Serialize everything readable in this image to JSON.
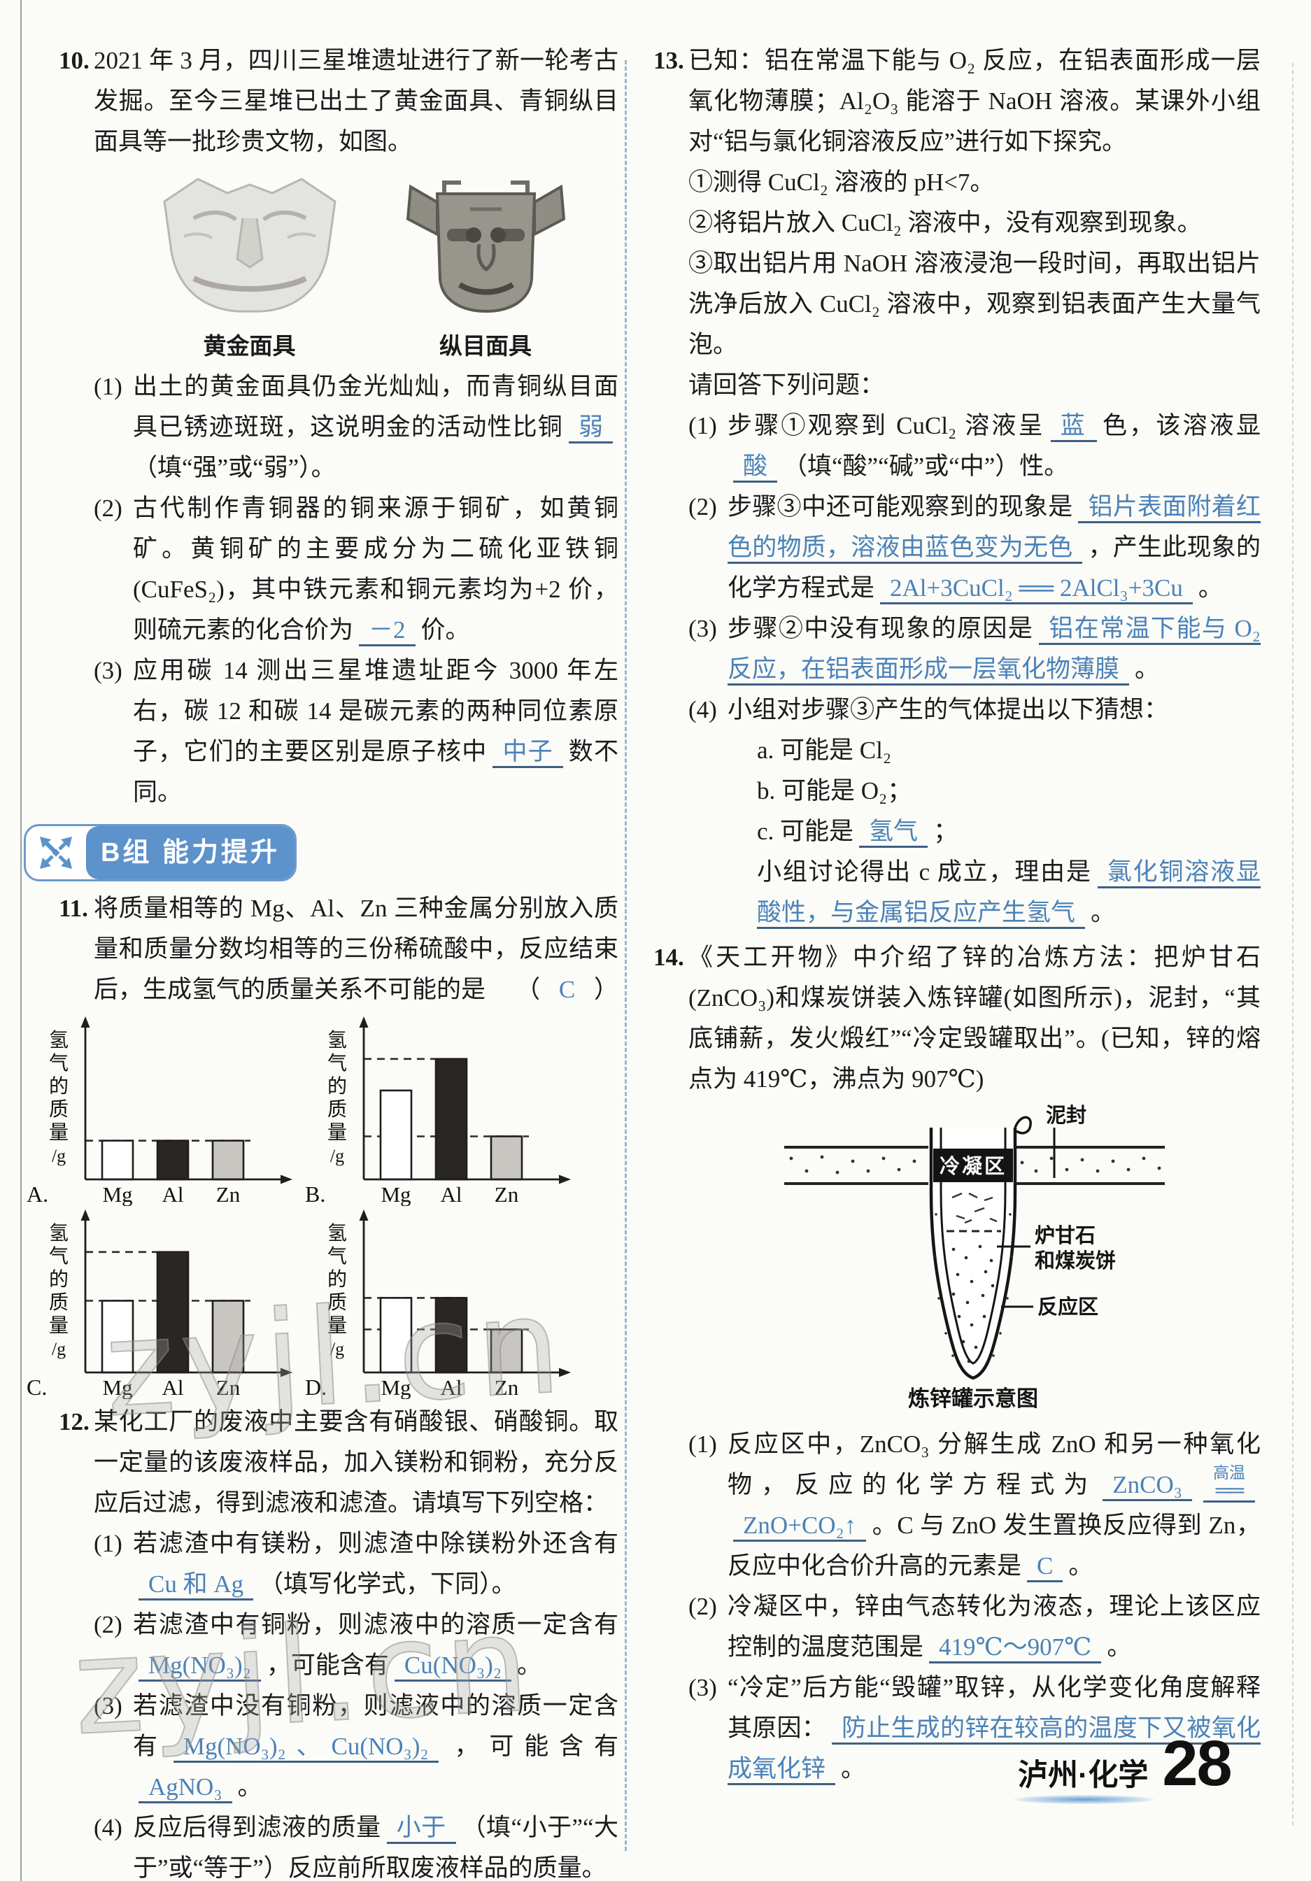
{
  "colors": {
    "answer_blue": "#4b82b8",
    "badge_blue": "#5d92cb",
    "underline": "#3f5f82",
    "text": "#1b1b1b",
    "watermark_gray": "#a8a8a4"
  },
  "watermarks": [
    "zyjl.cn",
    "zyjl.cn"
  ],
  "footer": {
    "region_subject": "泸州·化学",
    "page_number": "28"
  },
  "badge": {
    "label": "B组 能力提升"
  },
  "q10": {
    "no": "10.",
    "intro": "2021 年 3 月，四川三星堆遗址进行了新一轮考古发掘。至今三星堆已出土了黄金面具、青铜纵目面具等一批珍贵文物，如图。",
    "figure": {
      "captions": [
        "黄金面具",
        "纵目面具"
      ]
    },
    "parts": [
      {
        "no": "(1)",
        "segs": [
          {
            "t": "出土的黄金面具仍金光灿灿，而青铜纵目面具已锈迹斑斑，这说明金的活动性比铜"
          },
          {
            "a": "弱"
          },
          {
            "t": "（填“强”或“弱”）。"
          }
        ]
      },
      {
        "no": "(2)",
        "segs": [
          {
            "t": "古代制作青铜器的铜来源于铜矿，如黄铜矿。黄铜矿的主要成分为二硫化亚铁铜(CuFeS₂)，其中铁元素和铜元素均为+2 价，则硫元素的化合价为"
          },
          {
            "a": "－2"
          },
          {
            "t": "价。"
          }
        ]
      },
      {
        "no": "(3)",
        "segs": [
          {
            "t": "应用碳 14 测出三星堆遗址距今 3000 年左右，碳 12 和碳 14 是碳元素的两种同位素原子，它们的主要区别是原子核中"
          },
          {
            "a": "中子"
          },
          {
            "t": "数不同。"
          }
        ]
      }
    ]
  },
  "q11": {
    "no": "11.",
    "stem": "将质量相等的 Mg、Al、Zn 三种金属分别放入质量和质量分数均相等的三份稀硫酸中，反应结束后，生成氢气的质量关系不可能的是",
    "choice_open": "（",
    "answer": "C",
    "choice_close": "）"
  },
  "chart_data": {
    "type": "bar",
    "title": "Q11 选项图：等质量 Mg、Al、Zn 与等量稀硫酸反应生成氢气的质量",
    "ylabel": "氢气的质量/g",
    "ylabel_chars": [
      "氢",
      "气",
      "的",
      "质",
      "量",
      "/g"
    ],
    "categories": [
      "Mg",
      "Al",
      "Zn"
    ],
    "bar_colors": [
      "#ffffff",
      "#2a2624",
      "#c9c6c2"
    ],
    "ylim": [
      0,
      1
    ],
    "charts": [
      {
        "label": "A.",
        "values": [
          0.27,
          0.27,
          0.27
        ],
        "guides": [
          {
            "level": 0.27,
            "to": 2
          }
        ]
      },
      {
        "label": "B.",
        "values": [
          0.62,
          0.84,
          0.3
        ],
        "guides": [
          {
            "level": 0.84,
            "to": 1
          },
          {
            "level": 0.3,
            "to": 2
          }
        ]
      },
      {
        "label": "C.",
        "values": [
          0.5,
          0.84,
          0.5
        ],
        "guides": [
          {
            "level": 0.84,
            "to": 1
          },
          {
            "level": 0.5,
            "to": 2
          }
        ]
      },
      {
        "label": "D.",
        "values": [
          0.52,
          0.52,
          0.3
        ],
        "guides": [
          {
            "level": 0.52,
            "to": 1
          },
          {
            "level": 0.3,
            "to": 2
          }
        ]
      }
    ]
  },
  "q12": {
    "no": "12.",
    "intro": "某化工厂的废液中主要含有硝酸银、硝酸铜。取一定量的该废液样品，加入镁粉和铜粉，充分反应后过滤，得到滤液和滤渣。请填写下列空格：",
    "parts": [
      {
        "no": "(1)",
        "segs": [
          {
            "t": "若滤渣中有镁粉，则滤渣中除镁粉外还含有"
          },
          {
            "a": "Cu 和 Ag"
          },
          {
            "t": "（填写化学式，下同）。"
          }
        ]
      },
      {
        "no": "(2)",
        "segs": [
          {
            "t": "若滤渣中有铜粉，则滤液中的溶质一定含有"
          },
          {
            "a": "Mg(NO₃)₂"
          },
          {
            "t": "，可能含有"
          },
          {
            "a": "Cu(NO₃)₂"
          },
          {
            "t": "。"
          }
        ]
      },
      {
        "no": "(3)",
        "segs": [
          {
            "t": "若滤渣中没有铜粉，则滤液中的溶质一定含有"
          },
          {
            "a": "Mg(NO₃)₂、Cu(NO₃)₂"
          },
          {
            "t": "，可能含有"
          },
          {
            "a": "AgNO₃"
          },
          {
            "t": "。"
          }
        ]
      },
      {
        "no": "(4)",
        "segs": [
          {
            "t": "反应后得到滤液的质量"
          },
          {
            "a": "小于"
          },
          {
            "t": "（填“小于”“大于”或“等于”）反应前所取废液样品的质量。"
          }
        ]
      }
    ]
  },
  "q13": {
    "no": "13.",
    "intro": "已知：铝在常温下能与 O₂ 反应，在铝表面形成一层氧化物薄膜；Al₂O₃ 能溶于 NaOH 溶液。某课外小组对“铝与氯化铜溶液反应”进行如下探究。",
    "steps": [
      "①测得 CuCl₂ 溶液的 pH<7。",
      "②将铝片放入 CuCl₂ 溶液中，没有观察到现象。",
      "③取出铝片用 NaOH 溶液浸泡一段时间，再取出铝片洗净后放入 CuCl₂ 溶液中，观察到铝表面产生大量气泡。"
    ],
    "prompt": "请回答下列问题：",
    "parts": [
      {
        "no": "(1)",
        "segs": [
          {
            "t": "步骤①观察到 CuCl₂ 溶液呈"
          },
          {
            "a": "蓝"
          },
          {
            "t": "色，该溶液显"
          },
          {
            "a": "酸"
          },
          {
            "t": "（填“酸”“碱”或“中”）性。"
          }
        ]
      },
      {
        "no": "(2)",
        "segs": [
          {
            "t": "步骤③中还可能观察到的现象是"
          },
          {
            "a": "铝片表面附着红色的物质，溶液由蓝色变为无色"
          },
          {
            "t": "，产生此现象的化学方程式是"
          },
          {
            "a": "2Al+3CuCl₂ ══ 2AlCl₃+3Cu"
          },
          {
            "t": "。"
          }
        ]
      },
      {
        "no": "(3)",
        "segs": [
          {
            "t": "步骤②中没有现象的原因是"
          },
          {
            "a": "铝在常温下能与 O₂ 反应，在铝表面形成一层氧化物薄膜"
          },
          {
            "t": "。"
          }
        ]
      },
      {
        "no": "(4)",
        "segs": [
          {
            "t": "小组对步骤③产生的气体提出以下猜想："
          }
        ],
        "subs": [
          [
            {
              "t": "a. 可能是 Cl₂"
            }
          ],
          [
            {
              "t": "b. 可能是 O₂；"
            }
          ],
          [
            {
              "t": "c. 可能是"
            },
            {
              "a": "氢气"
            },
            {
              "t": "；"
            }
          ],
          [
            {
              "t": "小组讨论得出 c 成立，理由是"
            },
            {
              "a": "氯化铜溶液显酸性，与金属铝反应产生氢气"
            },
            {
              "t": "。"
            }
          ]
        ]
      }
    ]
  },
  "q14": {
    "no": "14.",
    "intro": "《天工开物》中介绍了锌的冶炼方法：把炉甘石(ZnCO₃)和煤炭饼装入炼锌罐(如图所示)，泥封，“其底铺薪，发火煅红”“冷定毁罐取出”。(已知，锌的熔点为 419℃，沸点为 907℃)",
    "diagram": {
      "labels": {
        "mud_seal": "泥封",
        "condensation_zone": "冷凝区",
        "calamine_1": "炉甘石",
        "calamine_2": "和煤炭饼",
        "reaction_zone": "反应区"
      },
      "caption": "炼锌罐示意图"
    },
    "parts": [
      {
        "no": "(1)",
        "segs": [
          {
            "t": "反应区中，ZnCO₃ 分解生成 ZnO 和另一种氧化物，反应的化学方程式为"
          },
          {
            "a": "ZnCO₃"
          },
          {
            "cond": "高温"
          },
          {
            "a": "ZnO+CO₂↑"
          },
          {
            "t": "。C 与 ZnO 发生置换反应得到 Zn，反应中化合价升高的元素是"
          },
          {
            "a": "C"
          },
          {
            "t": "。"
          }
        ]
      },
      {
        "no": "(2)",
        "segs": [
          {
            "t": "冷凝区中，锌由气态转化为液态，理论上该区应控制的温度范围是"
          },
          {
            "a": "419℃～907℃"
          },
          {
            "t": "。"
          }
        ]
      },
      {
        "no": "(3)",
        "segs": [
          {
            "t": "“冷定”后方能“毁罐”取锌，从化学变化角度解释其原因："
          },
          {
            "a": "防止生成的锌在较高的温度下又被氧化成氧化锌"
          },
          {
            "t": "。"
          }
        ]
      }
    ]
  }
}
